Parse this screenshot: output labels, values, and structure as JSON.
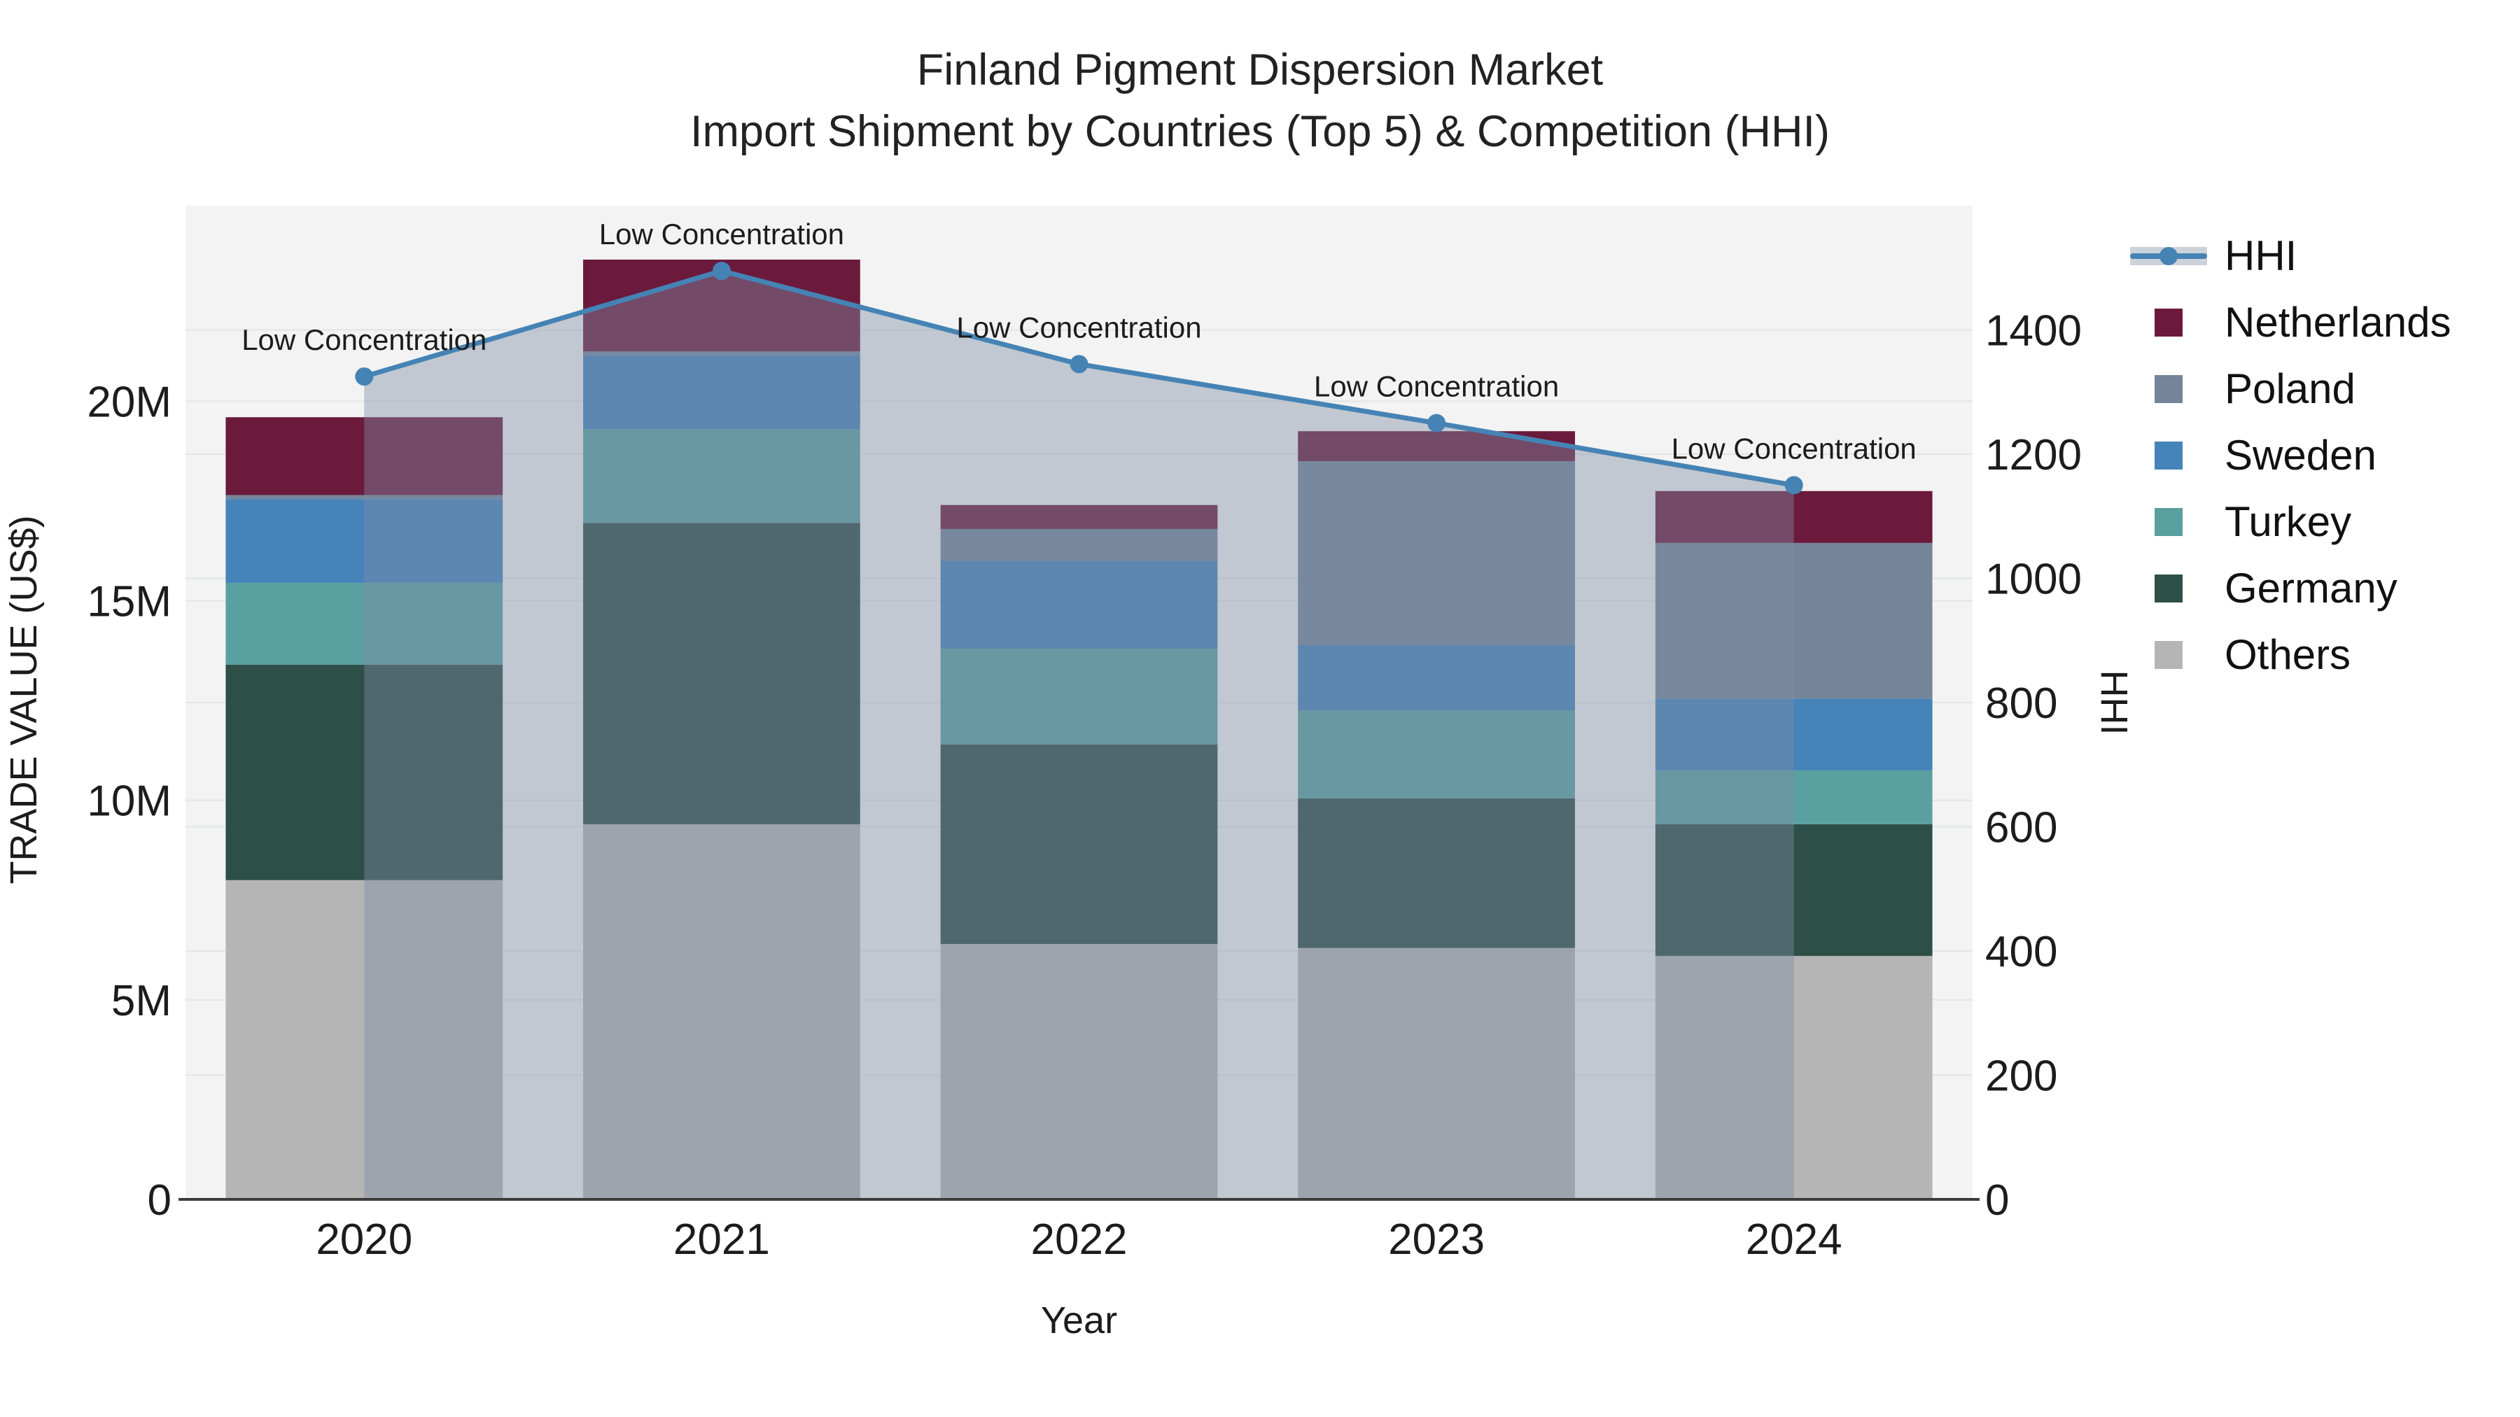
{
  "title": {
    "line1": "Finland Pigment Dispersion Market",
    "line2": "Import Shipment by Countries (Top 5) & Competition (HHI)"
  },
  "legend": {
    "items": [
      {
        "label": "HHI",
        "type": "line",
        "color": "#4583b5"
      },
      {
        "label": "Netherlands",
        "type": "swatch",
        "color": "#6b1a3c"
      },
      {
        "label": "Poland",
        "type": "swatch",
        "color": "#74859a"
      },
      {
        "label": "Sweden",
        "type": "swatch",
        "color": "#4583b8"
      },
      {
        "label": "Turkey",
        "type": "swatch",
        "color": "#5ba0a0"
      },
      {
        "label": "Germany",
        "type": "swatch",
        "color": "#2e4f48"
      },
      {
        "label": "Others",
        "type": "swatch",
        "color": "#b4b5b4"
      }
    ]
  },
  "chart_data": {
    "type": "bar",
    "subtype": "stacked-bars-with-line",
    "title": "Finland Pigment Dispersion Market — Import Shipment by Countries (Top 5) & Competition (HHI)",
    "categories": [
      "2020",
      "2021",
      "2022",
      "2023",
      "2024"
    ],
    "xlabel": "Year",
    "bar_value_unit": "million US$",
    "series": [
      {
        "name": "Others",
        "color": "#b4b5b4",
        "values": [
          8.0,
          9.4,
          6.4,
          6.3,
          6.1
        ]
      },
      {
        "name": "Germany",
        "color": "#2e4f48",
        "values": [
          5.4,
          7.55,
          5.0,
          3.75,
          3.3
        ]
      },
      {
        "name": "Turkey",
        "color": "#5ba0a0",
        "values": [
          2.05,
          2.35,
          2.4,
          2.2,
          1.35
        ]
      },
      {
        "name": "Sweden",
        "color": "#4583b8",
        "values": [
          2.1,
          1.85,
          2.2,
          1.65,
          1.8
        ]
      },
      {
        "name": "Poland",
        "color": "#74859a",
        "values": [
          0.1,
          0.1,
          0.8,
          4.6,
          3.9
        ]
      },
      {
        "name": "Netherlands",
        "color": "#6b1a3c",
        "values": [
          1.95,
          2.3,
          0.6,
          0.75,
          1.3
        ]
      }
    ],
    "bar_totals": [
      19.6,
      23.55,
      17.4,
      19.25,
      17.75
    ],
    "line_series": {
      "name": "HHI",
      "axis": "right",
      "color": "#4583b5",
      "area_fill": "rgba(126,140,164,0.42)",
      "values": [
        1325,
        1495,
        1345,
        1250,
        1150
      ],
      "point_annotations": [
        "Low Concentration",
        "Low Concentration",
        "Low Concentration",
        "Low Concentration",
        "Low Concentration"
      ]
    },
    "left_axis": {
      "label": "TRADE VALUE (US$)",
      "tick_labels": [
        "0",
        "5M",
        "10M",
        "15M",
        "20M"
      ],
      "tick_values": [
        0,
        5,
        10,
        15,
        20
      ],
      "range": [
        0,
        24.9
      ]
    },
    "right_axis": {
      "label": "HHI",
      "tick_labels": [
        "0",
        "200",
        "400",
        "600",
        "800",
        "1000",
        "1200",
        "1400"
      ],
      "tick_values": [
        0,
        200,
        400,
        600,
        800,
        1000,
        1200,
        1400
      ],
      "range": [
        0,
        1600
      ]
    },
    "grid": true,
    "legend_position": "right",
    "plot_bg": "#f2f3f2",
    "grid_color": "#e3e5e6",
    "axis_line_color": "#3d3d3d",
    "text_color": "#1c1c1c"
  }
}
